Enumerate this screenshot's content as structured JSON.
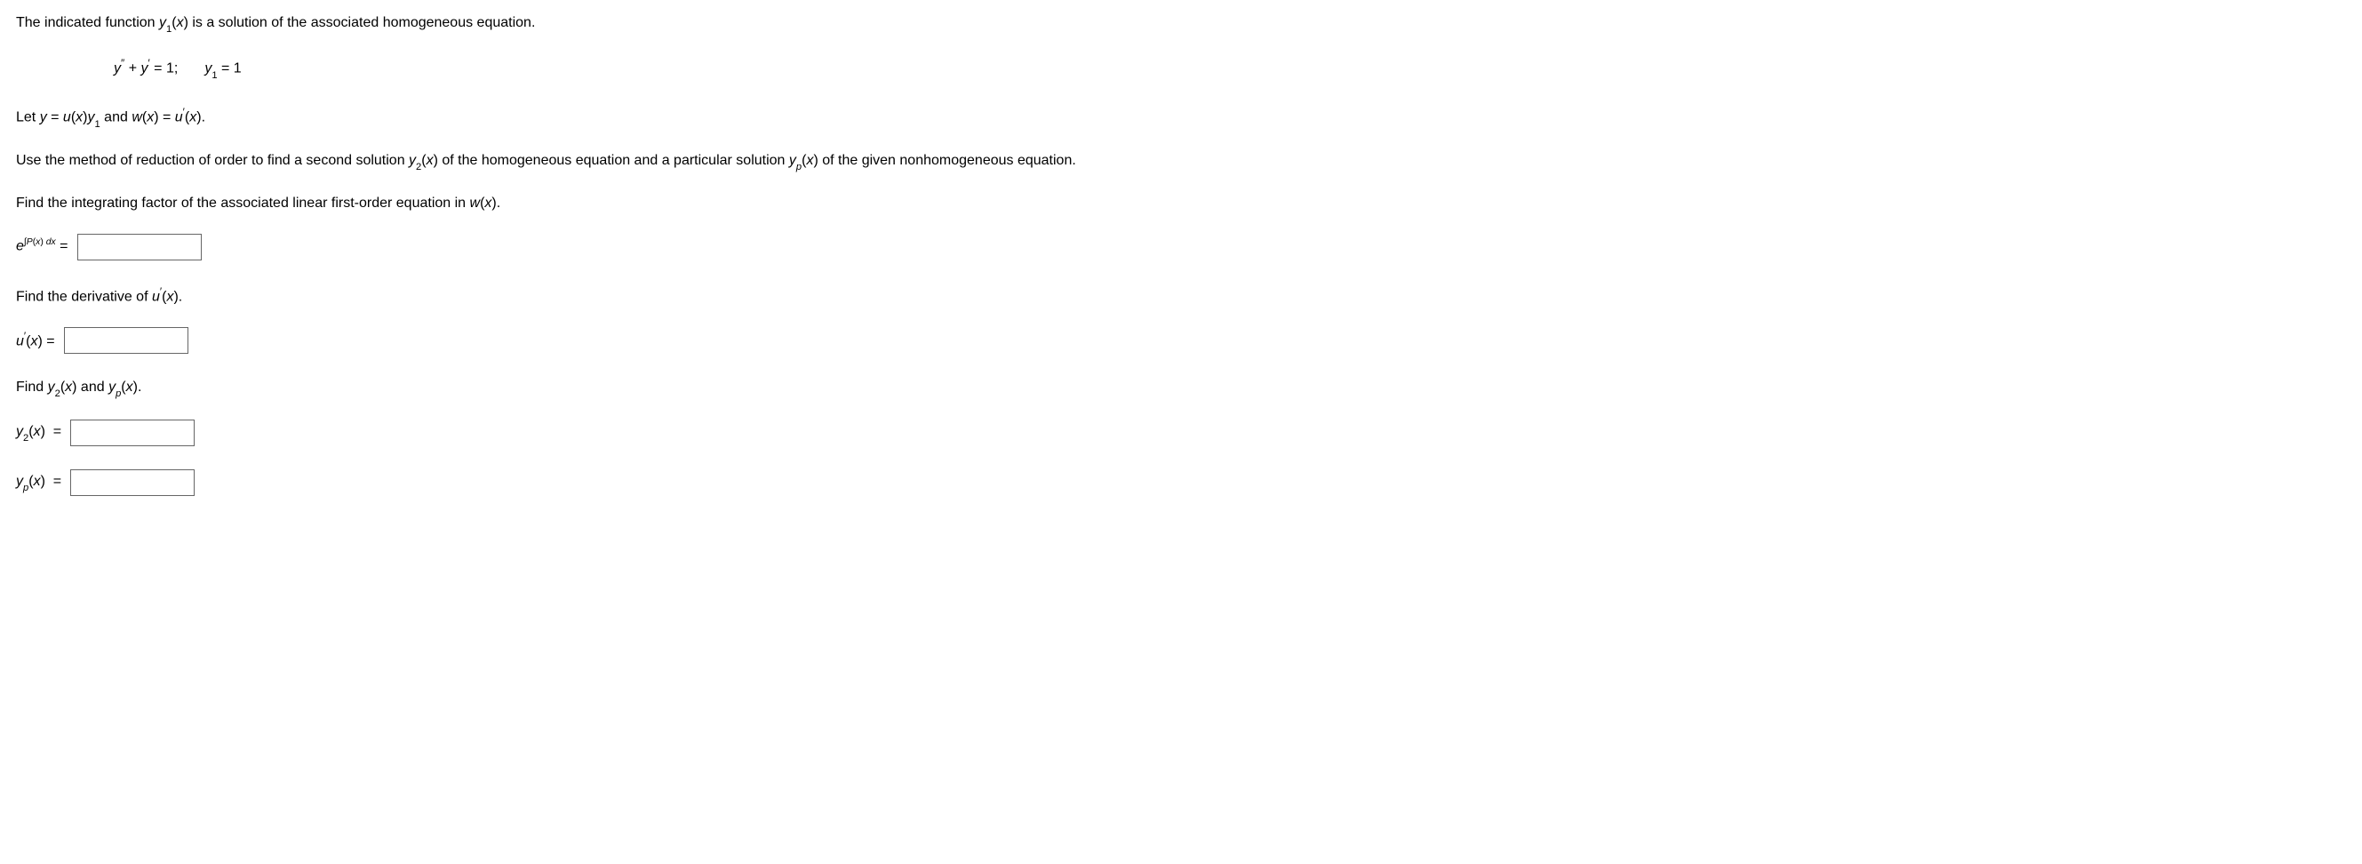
{
  "intro": {
    "pre": "The indicated function ",
    "y1": "y",
    "y1_sub": "1",
    "y1_arg": "(x)",
    "post": " is a solution of the associated homogeneous equation."
  },
  "equation": {
    "lhs_y": "y",
    "dprime": "″",
    "plus": " + ",
    "prime": "′",
    "eq1_rhs": " = 1;",
    "y1": "y",
    "y1_sub": "1",
    "eq2_rhs": " = 1"
  },
  "let_line": {
    "let": "Let ",
    "y": "y",
    "eq": " = ",
    "u": "u",
    "u_arg": "(x)",
    "y1": "y",
    "y1_sub": "1",
    "and": " and ",
    "w": "w",
    "w_arg": "(x)",
    "eq2": " = ",
    "uprime": "u",
    "prime": "′",
    "uprime_arg": "(x).",
    "period": ""
  },
  "instruction": {
    "pre": "Use the method of reduction of order to find a second solution ",
    "y2": "y",
    "y2_sub": "2",
    "y2_arg": "(x)",
    "mid": " of the homogeneous equation and a particular solution ",
    "yp": "y",
    "yp_sub": "p",
    "yp_arg": "(x)",
    "post": " of the given nonhomogeneous equation."
  },
  "find_if": {
    "text_pre": "Find the integrating factor of the associated linear first-order equation in ",
    "w": "w",
    "w_arg": "(x).",
    "label_e": "e",
    "label_int": "∫",
    "label_P": "P",
    "label_P_arg": "(x)",
    "label_dx": " dx",
    "eq": " = "
  },
  "find_uprime": {
    "text": "Find the derivative of ",
    "u": "u",
    "prime": "′",
    "u_arg": "(x).",
    "label_u": "u",
    "label_prime": "′",
    "label_arg": "(x)",
    "eq": " = "
  },
  "find_y2yp": {
    "text_pre": "Find ",
    "y2": "y",
    "y2_sub": "2",
    "y2_arg": "(x)",
    "and": " and ",
    "yp": "y",
    "yp_sub": "p",
    "yp_arg": "(x).",
    "label_y2": "y",
    "label_y2_sub": "2",
    "label_y2_arg": "(x)",
    "eq": " = ",
    "label_yp": "y",
    "label_yp_sub": "p",
    "label_yp_arg": "(x)"
  }
}
